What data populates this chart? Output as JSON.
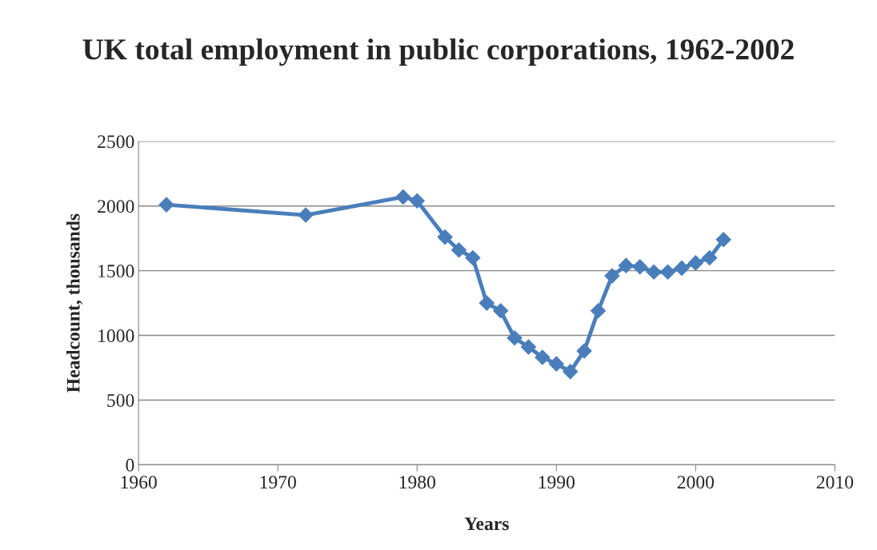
{
  "chart_data": {
    "type": "line",
    "title": "UK total employment in public corporations, 1962-2002",
    "xlabel": "Years",
    "ylabel": "Headcount, thousands",
    "x": [
      1962,
      1972,
      1979,
      1980,
      1982,
      1983,
      1984,
      1985,
      1986,
      1987,
      1988,
      1989,
      1990,
      1991,
      1992,
      1993,
      1994,
      1995,
      1996,
      1997,
      1998,
      1999,
      2000,
      2001,
      2002
    ],
    "series": [
      {
        "color": "#4a7ebb",
        "values": [
          2010,
          1930,
          2070,
          2040,
          1760,
          1660,
          1600,
          1250,
          1190,
          980,
          910,
          830,
          780,
          720,
          880,
          1190,
          1460,
          1540,
          1530,
          1490,
          1490,
          1520,
          1560,
          1600,
          1740
        ]
      }
    ],
    "xlim": [
      1960,
      2010
    ],
    "xticks": [
      1960,
      1970,
      1980,
      1990,
      2000,
      2010
    ],
    "ylim": [
      0,
      2500
    ],
    "yticks": [
      0,
      500,
      1000,
      1500,
      2000,
      2500
    ],
    "grid": "y",
    "legend": false,
    "marker": "diamond",
    "line_style": "solid"
  }
}
